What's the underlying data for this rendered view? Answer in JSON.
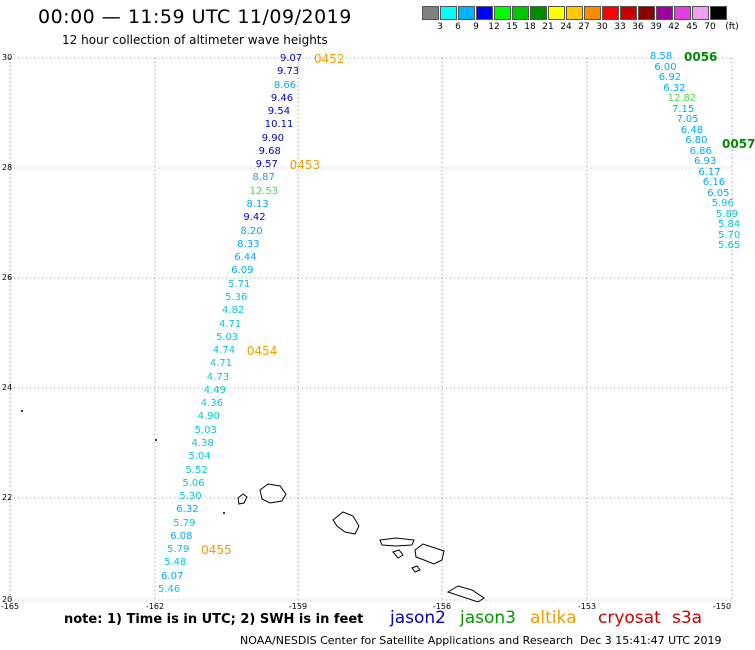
{
  "header": {
    "title": "00:00 — 11:59 UTC 11/09/2019",
    "subtitle": "12 hour collection of altimeter wave heights"
  },
  "colorbar": {
    "colors": [
      "#808080",
      "#00ffff",
      "#00b4ff",
      "#0000ff",
      "#00ff00",
      "#00c800",
      "#008c00",
      "#ffff00",
      "#ffc800",
      "#ff8c00",
      "#ff0000",
      "#c80000",
      "#8c0000",
      "#a000a0",
      "#e040e0",
      "#f0a0f0",
      "#000000"
    ],
    "labels": [
      "3",
      "6",
      "9",
      "12",
      "15",
      "18",
      "21",
      "24",
      "27",
      "30",
      "33",
      "36",
      "39",
      "42",
      "45",
      "70"
    ],
    "unit": "(ft)"
  },
  "axes": {
    "y_labels": [
      "30",
      "28",
      "26",
      "24",
      "22",
      "20"
    ],
    "x_labels": [
      "-165",
      "-162",
      "-159",
      "-156",
      "-153",
      "-150"
    ]
  },
  "track": {
    "readings": [
      {
        "v": "9.07",
        "c": "#0000cc"
      },
      {
        "v": "9.73",
        "c": "#0000cc"
      },
      {
        "v": "8.66",
        "c": "#00aaff"
      },
      {
        "v": "9.46",
        "c": "#0000cc"
      },
      {
        "v": "9.54",
        "c": "#0000cc"
      },
      {
        "v": "10.11",
        "c": "#0000cc"
      },
      {
        "v": "9.90",
        "c": "#0000cc"
      },
      {
        "v": "9.68",
        "c": "#0000cc"
      },
      {
        "v": "9.57",
        "c": "#0000cc"
      },
      {
        "v": "8.87",
        "c": "#00aaff"
      },
      {
        "v": "12.53",
        "c": "#44dd44"
      },
      {
        "v": "8.13",
        "c": "#00aaff"
      },
      {
        "v": "9.42",
        "c": "#0000cc"
      },
      {
        "v": "8.20",
        "c": "#00aaff"
      },
      {
        "v": "8.33",
        "c": "#00aaff"
      },
      {
        "v": "6.44",
        "c": "#00aaff"
      },
      {
        "v": "6.09",
        "c": "#00aaff"
      },
      {
        "v": "5.71",
        "c": "#00c8dc"
      },
      {
        "v": "5.36",
        "c": "#00c8dc"
      },
      {
        "v": "4.82",
        "c": "#00c8dc"
      },
      {
        "v": "4.71",
        "c": "#00c8dc"
      },
      {
        "v": "5.03",
        "c": "#00c8dc"
      },
      {
        "v": "4.74",
        "c": "#00c8dc"
      },
      {
        "v": "4.71",
        "c": "#00c8dc"
      },
      {
        "v": "4.73",
        "c": "#00c8dc"
      },
      {
        "v": "4.49",
        "c": "#00c8dc"
      },
      {
        "v": "4.36",
        "c": "#00c8dc"
      },
      {
        "v": "4.90",
        "c": "#00c8dc"
      },
      {
        "v": "5.03",
        "c": "#00c8dc"
      },
      {
        "v": "4.38",
        "c": "#00c8dc"
      },
      {
        "v": "5.04",
        "c": "#00c8dc"
      },
      {
        "v": "5.52",
        "c": "#00c8dc"
      },
      {
        "v": "5.06",
        "c": "#00c8dc"
      },
      {
        "v": "5.30",
        "c": "#00c8dc"
      },
      {
        "v": "6.32",
        "c": "#00aaff"
      },
      {
        "v": "5.79",
        "c": "#00c8dc"
      },
      {
        "v": "6.08",
        "c": "#00aaff"
      },
      {
        "v": "5.79",
        "c": "#00c8dc"
      },
      {
        "v": "5.48",
        "c": "#00c8dc"
      },
      {
        "v": "6.07",
        "c": "#00aaff"
      },
      {
        "v": "5.46",
        "c": "#00c8dc"
      }
    ],
    "pass_times": [
      {
        "t": "0452",
        "row": 0
      },
      {
        "t": "0453",
        "row": 8
      },
      {
        "t": "0454",
        "row": 22
      },
      {
        "t": "0455",
        "row": 37
      }
    ]
  },
  "ne_track": {
    "readings": [
      {
        "v": "8.58",
        "c": "#00aaff"
      },
      {
        "v": "6.00",
        "c": "#00aaff"
      },
      {
        "v": "6.92",
        "c": "#00aaff"
      },
      {
        "v": "6.32",
        "c": "#00aaff"
      },
      {
        "v": "12.82",
        "c": "#44dd44"
      },
      {
        "v": "7.15",
        "c": "#00aaff"
      },
      {
        "v": "7.05",
        "c": "#00aaff"
      },
      {
        "v": "6.48",
        "c": "#00aaff"
      },
      {
        "v": "6.80",
        "c": "#00aaff"
      },
      {
        "v": "6.86",
        "c": "#00aaff"
      },
      {
        "v": "6.93",
        "c": "#00aaff"
      },
      {
        "v": "6.17",
        "c": "#00aaff"
      },
      {
        "v": "6.16",
        "c": "#00aaff"
      },
      {
        "v": "6.05",
        "c": "#00aaff"
      },
      {
        "v": "5.96",
        "c": "#00c8dc"
      },
      {
        "v": "5.89",
        "c": "#00c8dc"
      },
      {
        "v": "5.84",
        "c": "#00c8dc"
      },
      {
        "v": "5.70",
        "c": "#00c8dc"
      },
      {
        "v": "5.65",
        "c": "#00c8dc"
      }
    ],
    "pass_times": [
      "0056",
      "0057"
    ]
  },
  "footer": {
    "note": "note: 1) Time is in UTC; 2) SWH is in feet",
    "legend": [
      {
        "label": "jason2",
        "color": "#0000cc"
      },
      {
        "label": "jason3",
        "color": "#009900"
      },
      {
        "label": "altika",
        "color": "#f59b00"
      },
      {
        "label": "cryosat",
        "color": "#cc0000"
      },
      {
        "label": "s3a",
        "color": "#cc0000"
      }
    ],
    "credit": "NOAA/NESDIS Center for Satellite Applications and Research",
    "timestamp": "Dec  3 15:41:47 UTC 2019"
  }
}
